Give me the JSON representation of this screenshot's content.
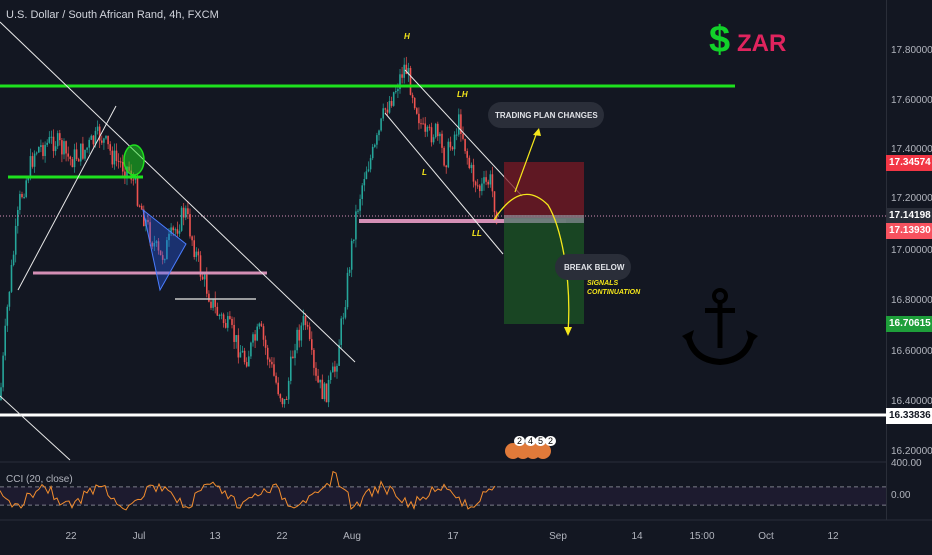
{
  "title": "U.S. Dollar / South African Rand, 4h, FXCM",
  "brand": {
    "dollar": "$",
    "currency": "ZAR",
    "dollar_color": "#12d12a",
    "currency_color": "#e0245e"
  },
  "price_axis": {
    "labels": [
      "17.80000",
      "17.60000",
      "17.40000",
      "17.20000",
      "17.00000",
      "16.80000",
      "16.60000",
      "16.40000",
      "16.20000"
    ],
    "indicator_labels": [
      "400.00",
      "0.00"
    ]
  },
  "price_tags": [
    {
      "text": "17.34574",
      "color": "#f23645"
    },
    {
      "text": "17.14198",
      "color": "#2a2e39"
    },
    {
      "text": "17.13930",
      "color": "#f7525f"
    },
    {
      "text": "16.70615",
      "color": "#1e9e3a"
    },
    {
      "text": "16.33836",
      "color": "#ffffff"
    }
  ],
  "time_axis": [
    "22",
    "Jul",
    "13",
    "22",
    "Aug",
    "17",
    "Sep",
    "14",
    "15:00",
    "Oct",
    "12"
  ],
  "annotations": {
    "h": "H",
    "lh": "LH",
    "l": "L",
    "ll": "LL",
    "trading_plan": "TRADING PLAN CHANGES",
    "break_below": "BREAK BELOW",
    "signals": "SIGNALS",
    "continuation": "CONTINUATION"
  },
  "indicator": {
    "name": "CCI (20, close)"
  },
  "events": [
    "2",
    "4",
    "5",
    "2"
  ],
  "colors": {
    "bg": "#131722",
    "up": "#26a69a",
    "down": "#ef5350",
    "green_line": "#1ee11e",
    "pink": "#d48fb5",
    "anno_yellow": "#f5e71b"
  }
}
